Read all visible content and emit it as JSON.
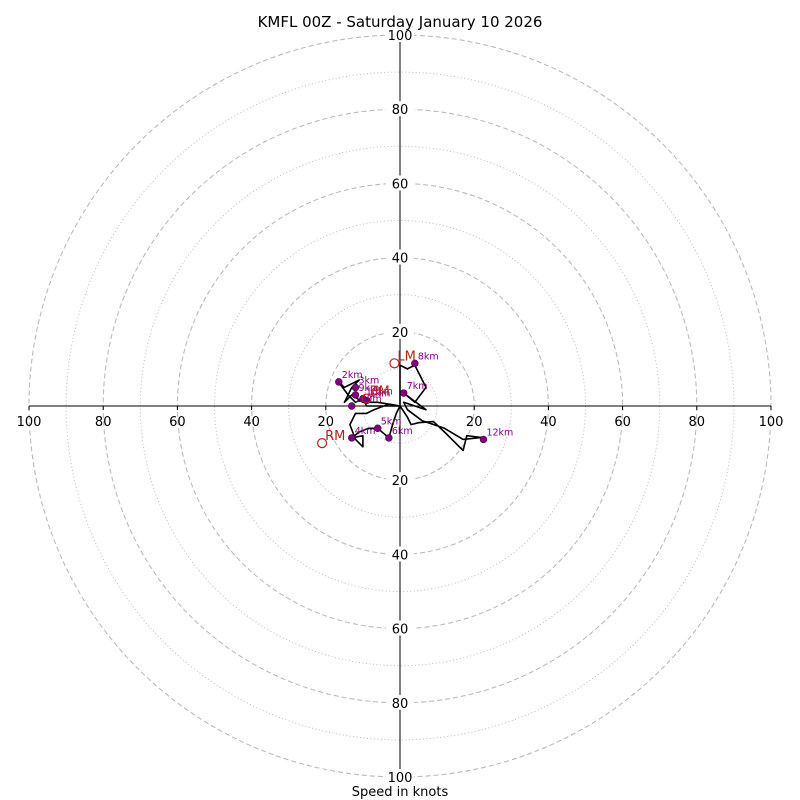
{
  "chart_data": {
    "type": "hodograph",
    "title": "KMFL 00Z - Saturday January 10 2026",
    "xlabel": "Speed in knots",
    "units": "knots",
    "range": 100,
    "ring_major": [
      20,
      40,
      60,
      80,
      100
    ],
    "ring_minor": [
      10,
      30,
      50,
      70,
      90
    ],
    "tick_values": [
      20,
      40,
      60,
      80,
      100
    ],
    "colors": {
      "profile": "#000000",
      "points": "#800080",
      "motion": "#b22222",
      "grid": "#bbbbbb",
      "axis": "#000000"
    },
    "profile": [
      [
        0,
        0
      ],
      [
        -3,
        0.5
      ],
      [
        -7,
        -1
      ],
      [
        -9,
        -2
      ],
      [
        -12,
        -2
      ],
      [
        -13.5,
        -5
      ],
      [
        -12,
        -9
      ],
      [
        -10,
        -11
      ],
      [
        -10,
        -8
      ],
      [
        -13,
        -8.6
      ],
      [
        -11,
        -7
      ],
      [
        -8.5,
        -6
      ],
      [
        -6,
        -6
      ],
      [
        -3,
        -8.6
      ],
      [
        -2,
        -5
      ],
      [
        -1,
        -2
      ],
      [
        0,
        0
      ],
      [
        2,
        -3
      ],
      [
        3,
        -5
      ],
      [
        5,
        -4.5
      ],
      [
        9,
        -4.2
      ],
      [
        12,
        -7
      ],
      [
        15,
        -10
      ],
      [
        17,
        -12
      ],
      [
        18,
        -8
      ],
      [
        22,
        -8.5
      ],
      [
        17,
        -9
      ],
      [
        12,
        -6
      ],
      [
        6,
        -4
      ],
      [
        2,
        -1
      ],
      [
        1,
        1
      ],
      [
        4,
        0
      ],
      [
        7,
        -1
      ],
      [
        3,
        2
      ],
      [
        1,
        3.5
      ],
      [
        4,
        1
      ],
      [
        7,
        5
      ],
      [
        5,
        9
      ],
      [
        4,
        11
      ],
      [
        2,
        10
      ],
      [
        0,
        11
      ],
      [
        0,
        0
      ],
      [
        -6,
        1
      ],
      [
        -10,
        1
      ],
      [
        -13,
        3
      ],
      [
        -15,
        1
      ],
      [
        -14,
        3
      ],
      [
        -13,
        5
      ],
      [
        -11,
        7
      ],
      [
        -15,
        5
      ],
      [
        -17,
        7
      ],
      [
        -14,
        3
      ],
      [
        -12,
        1
      ],
      [
        -10,
        2
      ],
      [
        -9,
        0
      ],
      [
        -3,
        0
      ],
      [
        0,
        0
      ]
    ],
    "points": [
      {
        "label": "1km",
        "u": -9,
        "v": 1.5
      },
      {
        "label": "2km",
        "u": -16.5,
        "v": 6.5
      },
      {
        "label": "3km",
        "u": -12,
        "v": 5
      },
      {
        "label": "4km",
        "u": -13,
        "v": -8.6
      },
      {
        "label": "5km",
        "u": -6,
        "v": -6
      },
      {
        "label": "6km",
        "u": -3,
        "v": -8.6
      },
      {
        "label": "7km",
        "u": 1,
        "v": 3.5
      },
      {
        "label": "8km",
        "u": 4,
        "v": 11.5
      },
      {
        "label": "9km",
        "u": -12,
        "v": 3
      },
      {
        "label": "10km",
        "u": -10,
        "v": 2
      },
      {
        "label": "11km",
        "u": -13,
        "v": 0
      },
      {
        "label": "12km",
        "u": 22.5,
        "v": -9
      }
    ],
    "storm_motion": [
      {
        "label": "LM",
        "u": -1.5,
        "v": 11.5
      },
      {
        "label": "RM",
        "u": -21,
        "v": -10
      },
      {
        "label": "BM",
        "u": -9,
        "v": 2
      }
    ]
  }
}
